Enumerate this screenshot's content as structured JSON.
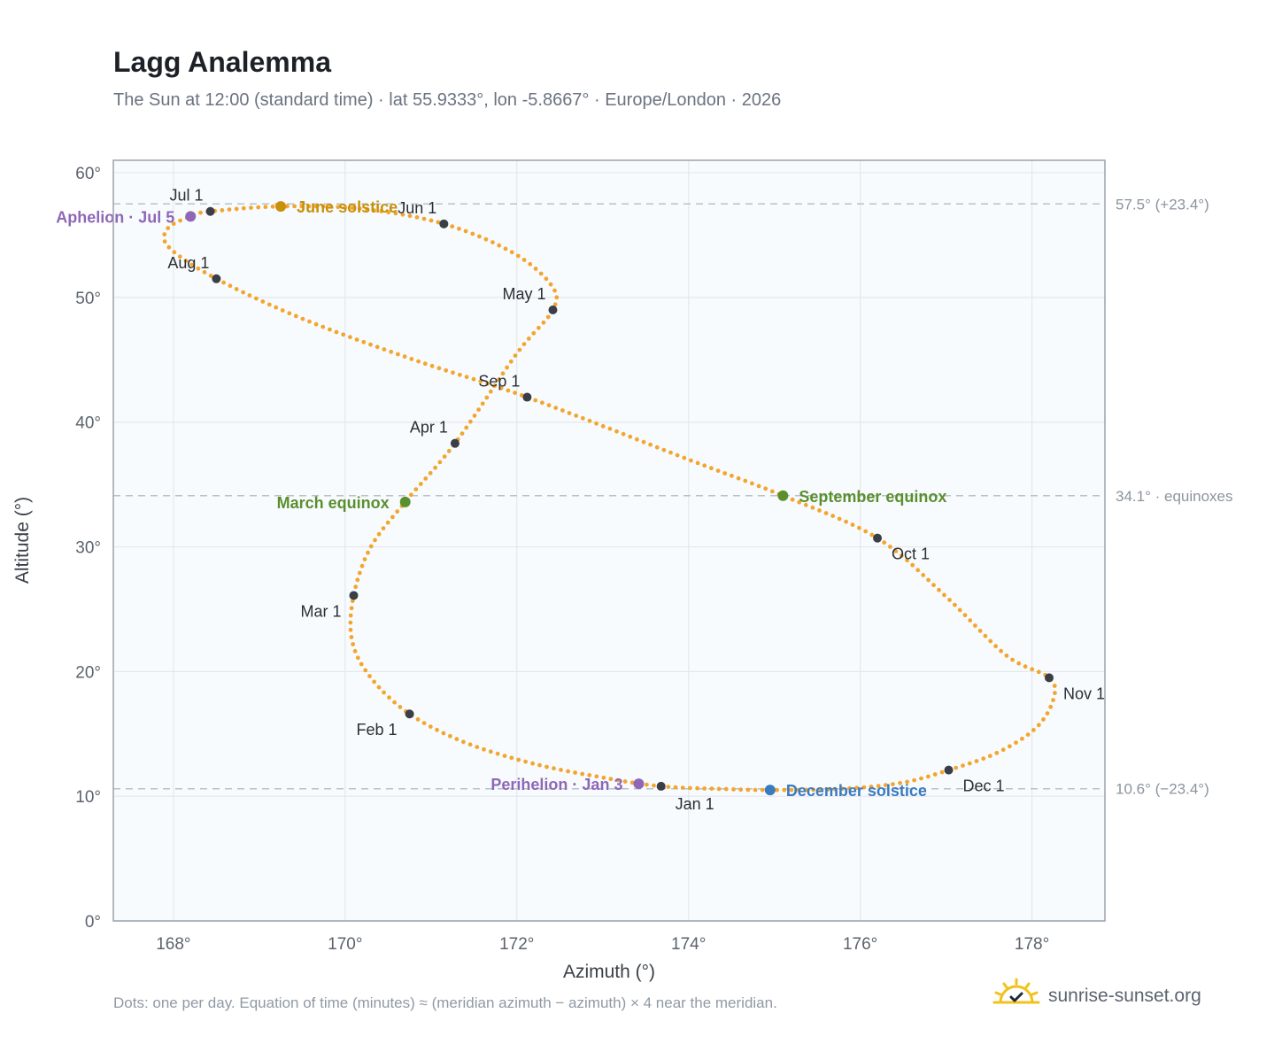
{
  "header": {
    "title": "Lagg Analemma",
    "subtitle": "The Sun at 12:00 (standard time) · lat 55.9333°, lon -5.8667° · Europe/London · 2026"
  },
  "footer": {
    "note": "Dots: one per day. Equation of time (minutes) ≈ (meridian azimuth − azimuth) × 4 near the meridian.",
    "brand": "sunrise-sunset.org",
    "brand_icon": "sun-logo-icon"
  },
  "colors": {
    "path": "#f2a630",
    "month_marker": "#3a3f47",
    "june_solstice": "#c9900a",
    "december_solstice": "#3a7bc0",
    "equinox": "#5a8f2e",
    "apsis": "#8e67b8",
    "plot_bg": "#f8fbfd",
    "grid": "#e3e8ee",
    "frame": "#9aa3ae",
    "ref_line": "#b8c1cb"
  },
  "chart_data": {
    "type": "scatter",
    "title": "Lagg Analemma",
    "subtitle": "The Sun at 12:00 (standard time) · lat 55.9333°, lon -5.8667° · Europe/London · 2026",
    "xlabel": "Azimuth (°)",
    "ylabel": "Altitude (°)",
    "xlim": [
      167.3,
      178.85
    ],
    "ylim": [
      0,
      61
    ],
    "x_ticks": [
      168,
      170,
      172,
      174,
      176,
      178
    ],
    "x_tick_labels": [
      "168°",
      "170°",
      "172°",
      "174°",
      "176°",
      "178°"
    ],
    "y_ticks": [
      0,
      10,
      20,
      30,
      40,
      50,
      60
    ],
    "y_tick_labels": [
      "0°",
      "10°",
      "20°",
      "30°",
      "40°",
      "50°",
      "60°"
    ],
    "grid": true,
    "reference_lines": [
      {
        "y": 57.5,
        "label": "57.5° (+23.4°)"
      },
      {
        "y": 34.1,
        "label": "34.1° · equinoxes"
      },
      {
        "y": 10.6,
        "label": "10.6° (−23.4°)"
      }
    ],
    "months": [
      {
        "label": "Jan 1",
        "x": 173.68,
        "y": 10.8,
        "pos": "below"
      },
      {
        "label": "Feb 1",
        "x": 170.75,
        "y": 16.6,
        "pos": "below-left"
      },
      {
        "label": "Mar 1",
        "x": 170.1,
        "y": 26.1,
        "pos": "below-left"
      },
      {
        "label": "Apr 1",
        "x": 171.28,
        "y": 38.3,
        "pos": "above-left"
      },
      {
        "label": "May 1",
        "x": 172.42,
        "y": 49.0,
        "pos": "above-left"
      },
      {
        "label": "Jun 1",
        "x": 171.15,
        "y": 55.9,
        "pos": "above-left"
      },
      {
        "label": "Jul 1",
        "x": 168.43,
        "y": 56.9,
        "pos": "above-left"
      },
      {
        "label": "Aug 1",
        "x": 168.5,
        "y": 51.5,
        "pos": "above-left"
      },
      {
        "label": "Sep 1",
        "x": 172.12,
        "y": 42.0,
        "pos": "above-left"
      },
      {
        "label": "Oct 1",
        "x": 176.2,
        "y": 30.7,
        "pos": "below-right"
      },
      {
        "label": "Nov 1",
        "x": 178.2,
        "y": 19.5,
        "pos": "below-right"
      },
      {
        "label": "Dec 1",
        "x": 177.03,
        "y": 12.1,
        "pos": "below-right"
      }
    ],
    "events": [
      {
        "label": "June solstice",
        "x": 169.25,
        "y": 57.3,
        "color": "#c9900a",
        "side": "right"
      },
      {
        "label": "December solstice",
        "x": 174.95,
        "y": 10.5,
        "color": "#3a7bc0",
        "side": "right"
      },
      {
        "label": "March equinox",
        "x": 170.7,
        "y": 33.6,
        "color": "#5a8f2e",
        "side": "left"
      },
      {
        "label": "September equinox",
        "x": 175.1,
        "y": 34.1,
        "color": "#5a8f2e",
        "side": "right"
      },
      {
        "label": "Aphelion · Jul 5",
        "x": 168.2,
        "y": 56.5,
        "color": "#8e67b8",
        "side": "left"
      },
      {
        "label": "Perihelion · Jan 3",
        "x": 173.42,
        "y": 11.0,
        "color": "#8e67b8",
        "side": "left"
      }
    ],
    "daily_path": [
      [
        173.68,
        10.8
      ],
      [
        174.4,
        10.58
      ],
      [
        174.95,
        10.5
      ],
      [
        175.8,
        10.6
      ],
      [
        176.5,
        11.1
      ],
      [
        177.03,
        12.1
      ],
      [
        177.6,
        13.5
      ],
      [
        178.05,
        15.5
      ],
      [
        178.25,
        17.8
      ],
      [
        178.2,
        19.5
      ],
      [
        177.7,
        21.3
      ],
      [
        177.0,
        26.0
      ],
      [
        176.2,
        30.7
      ],
      [
        175.1,
        34.1
      ],
      [
        174.0,
        37.0
      ],
      [
        172.12,
        42.0
      ],
      [
        170.8,
        45.0
      ],
      [
        169.5,
        48.3
      ],
      [
        168.5,
        51.5
      ],
      [
        167.95,
        54.0
      ],
      [
        167.93,
        55.5
      ],
      [
        168.2,
        56.5
      ],
      [
        168.43,
        56.9
      ],
      [
        169.25,
        57.3
      ],
      [
        170.2,
        57.1
      ],
      [
        171.15,
        55.9
      ],
      [
        171.95,
        53.6
      ],
      [
        172.4,
        51.0
      ],
      [
        172.42,
        49.0
      ],
      [
        172.0,
        45.5
      ],
      [
        171.28,
        38.3
      ],
      [
        170.7,
        33.6
      ],
      [
        170.3,
        30.0
      ],
      [
        170.1,
        26.1
      ],
      [
        170.08,
        22.5
      ],
      [
        170.3,
        19.5
      ],
      [
        170.75,
        16.6
      ],
      [
        171.4,
        14.3
      ],
      [
        172.2,
        12.6
      ],
      [
        173.0,
        11.5
      ],
      [
        173.68,
        10.8
      ]
    ]
  }
}
